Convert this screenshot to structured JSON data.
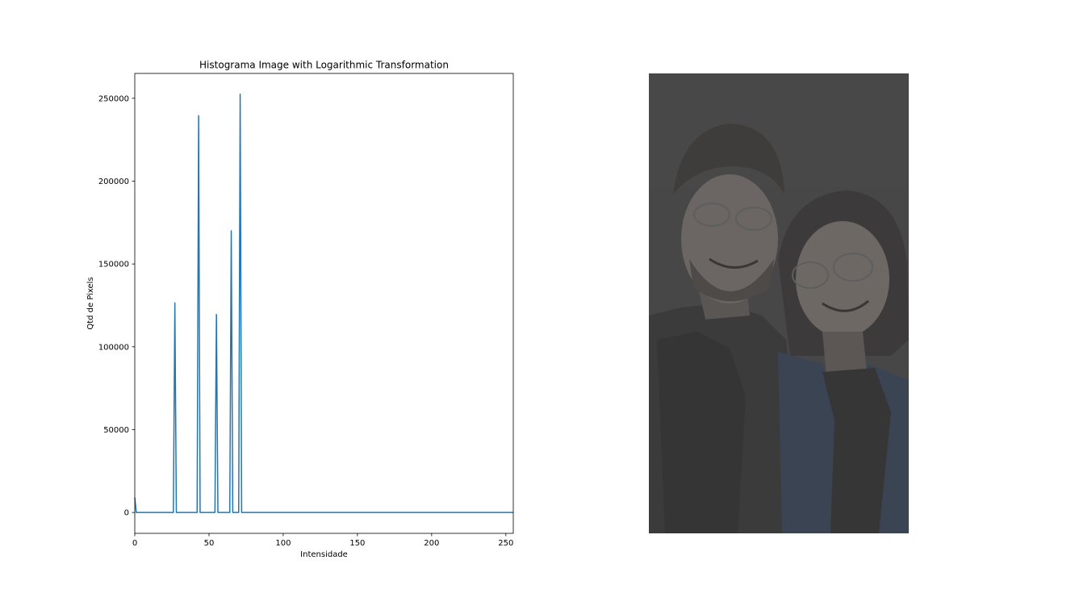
{
  "chart_data": {
    "type": "line",
    "title": "Histograma Image with Logarithmic Transformation",
    "xlabel": "Intensidade",
    "ylabel": "Qtd de Pixels",
    "xlim": [
      0,
      255
    ],
    "ylim": [
      -12600,
      265000
    ],
    "grid": false,
    "xticks": [
      0,
      50,
      100,
      150,
      200,
      250
    ],
    "yticks": [
      0,
      50000,
      100000,
      150000,
      200000,
      250000
    ],
    "series": [
      {
        "color": "#1f77b4",
        "x": [
          0,
          1,
          26,
          27,
          28,
          42,
          43,
          44,
          54,
          55,
          56,
          64,
          65,
          66,
          70,
          71,
          72,
          255
        ],
        "y": [
          9000,
          0,
          0,
          126500,
          0,
          0,
          239500,
          0,
          0,
          119500,
          0,
          0,
          170000,
          0,
          0,
          252500,
          0,
          0
        ]
      }
    ]
  },
  "image_panel": {
    "background": "#474747"
  }
}
